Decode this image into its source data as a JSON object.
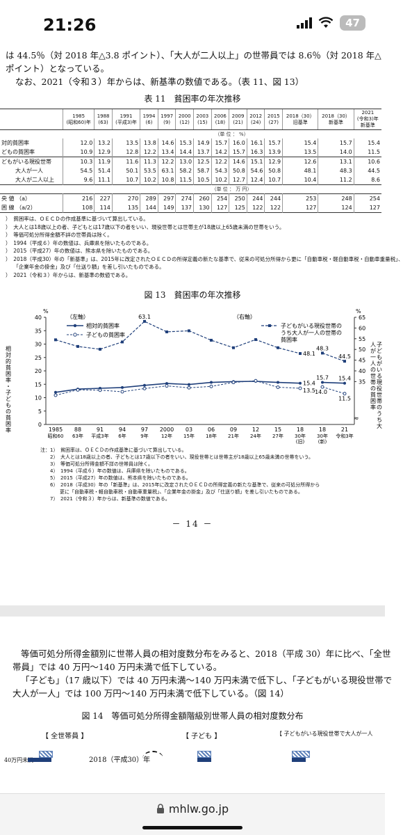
{
  "status": {
    "time": "21:26",
    "battery": "47"
  },
  "top_text": {
    "line1": "は 44.5％（対 2018 年△3.8 ポイント）、「大人が二人以上」の世帯員では 8.6％（対 2018 年△",
    "line2": "ポイント）となっている。",
    "line3": "なお、2021（令和３）年からは、新基準の数値である。（表 11、図 13）"
  },
  "table11": {
    "caption": "表 11　貧困率の年次推移",
    "years": [
      "1985\n(昭和60)年",
      "1988\n(63)",
      "1991\n(平成3)年",
      "1994\n(6)",
      "1997\n(9)",
      "2000\n(12)",
      "2003\n(15)",
      "2006\n(18)",
      "2009\n(21)",
      "2012\n(24)",
      "2015\n(27)",
      "2018（30）\n旧基準",
      "2018（30）\n新基準",
      "2021\n(令和3)年\n新基準"
    ],
    "unit_pct": "（単 位 ： %）",
    "unit_yen": "（単 位 ： 万 円）",
    "rows": [
      {
        "label": "対的貧困率",
        "values": [
          "12.0",
          "13.2",
          "13.5",
          "13.8",
          "14.6",
          "15.3",
          "14.9",
          "15.7",
          "16.0",
          "16.1",
          "15.7",
          "15.4",
          "15.7",
          "15.4"
        ]
      },
      {
        "label": "どもの貧困率",
        "values": [
          "10.9",
          "12.9",
          "12.8",
          "12.2",
          "13.4",
          "14.4",
          "13.7",
          "14.2",
          "15.7",
          "16.3",
          "13.9",
          "13.5",
          "14.0",
          "11.5"
        ]
      },
      {
        "label": "どもがいる現役世帯",
        "values": [
          "10.3",
          "11.9",
          "11.6",
          "11.3",
          "12.2",
          "13.0",
          "12.5",
          "12.2",
          "14.6",
          "15.1",
          "12.9",
          "12.6",
          "13.1",
          "10.6"
        ]
      },
      {
        "label": "大人が一人",
        "values": [
          "54.5",
          "51.4",
          "50.1",
          "53.5",
          "63.1",
          "58.2",
          "58.7",
          "54.3",
          "50.8",
          "54.6",
          "50.8",
          "48.1",
          "48.3",
          "44.5"
        ]
      },
      {
        "label": "大人が二人以上",
        "values": [
          "9.6",
          "11.1",
          "10.7",
          "10.2",
          "10.8",
          "11.5",
          "10.5",
          "10.2",
          "12.7",
          "12.4",
          "10.7",
          "10.4",
          "11.2",
          "8.6"
        ]
      },
      {
        "label": "央 値 （a）",
        "values": [
          "216",
          "227",
          "270",
          "289",
          "297",
          "274",
          "260",
          "254",
          "250",
          "244",
          "244",
          "253",
          "248",
          "254"
        ]
      },
      {
        "label": "困 線 （a/2）",
        "values": [
          "108",
          "114",
          "135",
          "144",
          "149",
          "137",
          "130",
          "127",
          "125",
          "122",
          "122",
          "127",
          "124",
          "127"
        ]
      }
    ],
    "notes": [
      "）　貧困率は、ＯＥＣＤの作成基準に基づいて算出している。",
      "）　大人とは18歳以上の者、子どもとは17歳以下の者をいい、現役世帯とは世帯主が18歳以上65歳未満の世帯をいう。",
      "）　等価可処分所得金額不詳の世帯員は除く。",
      "）　1994（平成６）年の数値は、兵庫県を除いたものである。",
      "）　2015（平成27）年の数値は、熊本県を除いたものである。",
      "）　2018（平成30）年の「新基準」は、2015年に改定されたＯＥＣＤの所得定義の新たな基準で、従来の可処分所得から更に「自動車税・軽自動車税・自動車重量税」、",
      "　　「企業年金の掛金」及び「仕送り額」を差し引いたものである。",
      "）　2021（令和３）年からは、新基準の数値である。"
    ]
  },
  "figure13": {
    "caption": "図 13　貧困率の年次推移",
    "left_axis_label": "（左軸）",
    "right_axis_label": "（右軸）",
    "left_unit": "%",
    "right_unit": "%",
    "left_title": "相対的貧困率・子どもの貧困率",
    "right_title": "子どもがいる現役世帯のうち大人が一人の世帯の貧困率",
    "legend_relative": "相対的貧困率",
    "legend_child": "子どもの貧困率",
    "legend_single_line1": "子どもがいる現役世帯の",
    "legend_single_line2": "うち大人が一人の世帯の",
    "legend_single_line3": "貧困率",
    "x_top": [
      "1985",
      "88",
      "91",
      "94",
      "97",
      "2000",
      "03",
      "06",
      "09",
      "12",
      "15",
      "18",
      "18",
      "21"
    ],
    "x_bottom": [
      "昭和60",
      "63年",
      "平成3年",
      "6年",
      "9年",
      "12年",
      "15年",
      "18年",
      "21年",
      "24年",
      "27年",
      "30年",
      "30年",
      "令和3年"
    ],
    "x_extra": [
      "",
      "",
      "",
      "",
      "",
      "",
      "",
      "",
      "",
      "",
      "",
      "(旧)",
      "(新)",
      ""
    ],
    "notes": [
      "注：1）　貧困率は、ＯＥＣＤの作成基準に基づいて算出している。",
      "　　2）　大人とは18歳以上の者、子どもとは17歳以下の者をいい、現役世帯とは世帯主が18歳以上65歳未満の世帯をいう。",
      "　　3）　等価可処分所得金額不詳の世帯員は除く。",
      "　　4）　1994（平成６）年の数値は、兵庫県を除いたものである。",
      "　　5）　2015（平成27）年の数値は、熊本県を除いたものである。",
      "　　6）　2018（平成30）年の「新基準」は、2015年に改定されたＯＥＣＤの所得定義の新たな基準で、従来の可処分所得から",
      "　　　　更に「自動車税・軽自動車税・自動車重量税」、「企業年金の掛金」及び「仕送り額」を差し引いたものである。",
      "　　7）　2021（令和３）年からは、新基準の数値である。"
    ]
  },
  "chart_data": {
    "type": "line",
    "x": [
      "1985",
      "88",
      "91",
      "94",
      "97",
      "2000",
      "03",
      "06",
      "09",
      "12",
      "15",
      "18(旧)",
      "18(新)",
      "21"
    ],
    "left_ylim": [
      0,
      40
    ],
    "right_ylim": [
      15,
      65
    ],
    "series": [
      {
        "name": "相対的貧困率",
        "axis": "left",
        "values": [
          12.0,
          13.2,
          13.5,
          13.8,
          14.6,
          15.3,
          14.9,
          15.7,
          16.0,
          16.1,
          15.7,
          15.4,
          15.7,
          15.4
        ]
      },
      {
        "name": "子どもの貧困率",
        "axis": "left",
        "values": [
          10.9,
          12.9,
          12.8,
          12.2,
          13.4,
          14.4,
          13.7,
          14.2,
          15.7,
          16.3,
          13.9,
          13.5,
          14.0,
          11.5
        ]
      },
      {
        "name": "子どもがいる現役世帯のうち大人が一人の世帯の貧困率",
        "axis": "right",
        "values": [
          54.5,
          51.4,
          50.1,
          53.5,
          63.1,
          58.2,
          58.7,
          54.3,
          50.8,
          54.6,
          50.8,
          48.1,
          48.3,
          44.5
        ]
      }
    ],
    "labels": {
      "peak": "63.1",
      "single_old": "48.1",
      "single_new": "48.3",
      "single_21": "44.5",
      "rel_new": "15.7",
      "rel_21": "15.4",
      "rel_old": "15.4",
      "child_old": "13.5",
      "child_new": "14.0",
      "child_21": "11.5"
    },
    "left_ticks": [
      "0",
      "5",
      "10",
      "15",
      "20",
      "25",
      "30",
      "35",
      "40"
    ],
    "right_ticks": [
      "",
      "35",
      "40",
      "45",
      "50",
      "55",
      "60",
      "65"
    ]
  },
  "page_number": "－ 14 －",
  "bottom_text": {
    "p1a": "等価可処分所得金額別に世帯人員の相対度数分布をみると、2018（平成 30）年に比べ、「全世",
    "p1b": "帯員」では 40 万円～140 万円未満で低下している。",
    "p2a": "「子ども」（17 歳以下）では 40 万円未満～140 万円未満で低下し、「子どもがいる現役世帯で",
    "p2b": "大人が一人」では 100 万円～140 万円未満で低下している。（図 14）"
  },
  "figure14": {
    "caption": "図 14　等価可処分所得金額階級別世帯人員の相対度数分布",
    "panel1": "【 全世帯員 】",
    "panel2": "【 子ども 】",
    "panel3": "【 子どもがいる現役世帯で大人が一人",
    "row1": "40万円未満",
    "year_label": "2018（平成30）年"
  },
  "browser": {
    "url": "mhlw.go.jp"
  }
}
